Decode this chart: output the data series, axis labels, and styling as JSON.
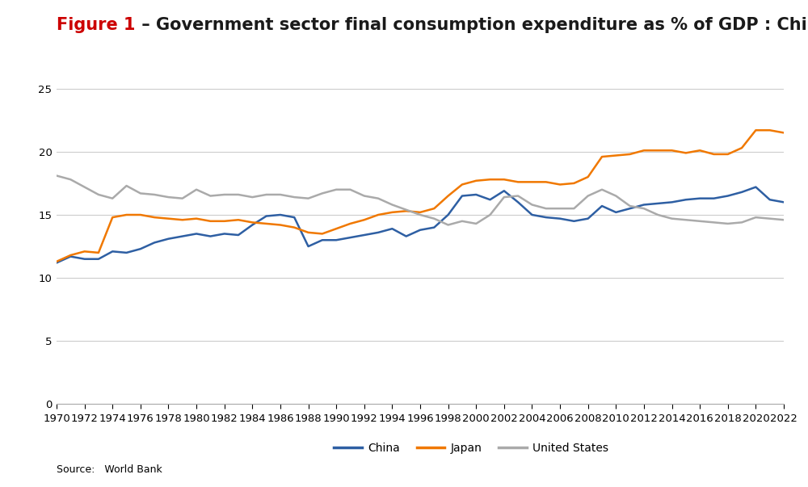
{
  "title_red": "Figure 1",
  "title_black": " – Government sector final consumption expenditure as % of GDP : China, Japan, US",
  "source_text": "Source:   World Bank",
  "years": [
    1970,
    1971,
    1972,
    1973,
    1974,
    1975,
    1976,
    1977,
    1978,
    1979,
    1980,
    1981,
    1982,
    1983,
    1984,
    1985,
    1986,
    1987,
    1988,
    1989,
    1990,
    1991,
    1992,
    1993,
    1994,
    1995,
    1996,
    1997,
    1998,
    1999,
    2000,
    2001,
    2002,
    2003,
    2004,
    2005,
    2006,
    2007,
    2008,
    2009,
    2010,
    2011,
    2012,
    2013,
    2014,
    2015,
    2016,
    2017,
    2018,
    2019,
    2020,
    2021,
    2022
  ],
  "china": [
    11.2,
    11.7,
    11.5,
    11.5,
    12.1,
    12.0,
    12.3,
    12.8,
    13.1,
    13.3,
    13.5,
    13.3,
    13.5,
    13.4,
    14.2,
    14.9,
    15.0,
    14.8,
    12.5,
    13.0,
    13.0,
    13.2,
    13.4,
    13.6,
    13.9,
    13.3,
    13.8,
    14.0,
    15.0,
    16.5,
    16.6,
    16.2,
    16.9,
    16.0,
    15.0,
    14.8,
    14.7,
    14.5,
    14.7,
    15.7,
    15.2,
    15.5,
    15.8,
    15.9,
    16.0,
    16.2,
    16.3,
    16.3,
    16.5,
    16.8,
    17.2,
    16.2,
    16.0
  ],
  "japan": [
    11.3,
    11.8,
    12.1,
    12.0,
    14.8,
    15.0,
    15.0,
    14.8,
    14.7,
    14.6,
    14.7,
    14.5,
    14.5,
    14.6,
    14.4,
    14.3,
    14.2,
    14.0,
    13.6,
    13.5,
    13.9,
    14.3,
    14.6,
    15.0,
    15.2,
    15.3,
    15.2,
    15.5,
    16.5,
    17.4,
    17.7,
    17.8,
    17.8,
    17.6,
    17.6,
    17.6,
    17.4,
    17.5,
    18.0,
    19.6,
    19.7,
    19.8,
    20.1,
    20.1,
    20.1,
    19.9,
    20.1,
    19.8,
    19.8,
    20.3,
    21.7,
    21.7,
    21.5
  ],
  "us": [
    18.1,
    17.8,
    17.2,
    16.6,
    16.3,
    17.3,
    16.7,
    16.6,
    16.4,
    16.3,
    17.0,
    16.5,
    16.6,
    16.6,
    16.4,
    16.6,
    16.6,
    16.4,
    16.3,
    16.7,
    17.0,
    17.0,
    16.5,
    16.3,
    15.8,
    15.4,
    15.0,
    14.7,
    14.2,
    14.5,
    14.3,
    15.0,
    16.4,
    16.5,
    15.8,
    15.5,
    15.5,
    15.5,
    16.5,
    17.0,
    16.5,
    15.7,
    15.5,
    15.0,
    14.7,
    14.6,
    14.5,
    14.4,
    14.3,
    14.4,
    14.8,
    14.7,
    14.6
  ],
  "china_color": "#2E5FA3",
  "japan_color": "#F07800",
  "us_color": "#AAAAAA",
  "ylim": [
    0,
    27
  ],
  "yticks": [
    0,
    5,
    10,
    15,
    20,
    25
  ],
  "background_color": "#FFFFFF",
  "grid_color": "#CCCCCC",
  "title_fontsize": 15,
  "axis_fontsize": 9.5,
  "legend_fontsize": 10,
  "source_fontsize": 9,
  "line_width": 1.8
}
